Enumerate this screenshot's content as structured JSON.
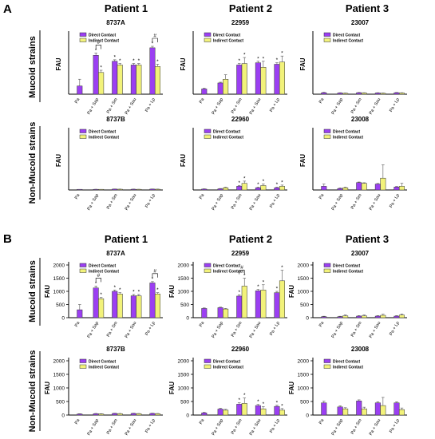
{
  "panels": [
    {
      "letter": "A"
    },
    {
      "letter": "B"
    }
  ],
  "patients": [
    "Patient 1",
    "Patient 2",
    "Patient 3"
  ],
  "row_labels": [
    "Mucoid strains",
    "Non-Mucoid strains"
  ],
  "legend": [
    "Direct Contact",
    "Indirect Contact"
  ],
  "colors": {
    "direct": "#9b3ff2",
    "indirect": "#f2f27a",
    "edge": "#333333"
  },
  "chart_data": [
    {
      "type": "bar",
      "panel": "A",
      "strain": "8737A",
      "ylabel": "FAU",
      "ylim": [
        0,
        4000
      ],
      "yticks": [],
      "categories": [
        "Pa",
        "Pa + Sap",
        "Pa + Sm",
        "Pa + Sau",
        "Pa + Lp"
      ],
      "legend": true,
      "series": [
        {
          "name": "Direct Contact",
          "values": [
            550,
            2600,
            2200,
            1950,
            3100
          ],
          "err": [
            450,
            150,
            100,
            100,
            100
          ],
          "stars": [
            false,
            true,
            true,
            true,
            true
          ]
        },
        {
          "name": "Indirect Contact",
          "values": [
            null,
            1450,
            1950,
            1950,
            1850
          ],
          "err": [
            null,
            150,
            100,
            100,
            150
          ],
          "stars": [
            false,
            true,
            true,
            true,
            true
          ]
        }
      ],
      "brackets": [
        {
          "cat": 1,
          "label": "#"
        },
        {
          "cat": 4,
          "label": "#"
        }
      ]
    },
    {
      "type": "bar",
      "panel": "A",
      "strain": "22959",
      "ylabel": "FAU",
      "ylim": [
        0,
        4000
      ],
      "yticks": [],
      "categories": [
        "Pa",
        "Pa + Sap",
        "Pa + Sm",
        "Pa + Sau",
        "Pa + Lp"
      ],
      "legend": true,
      "series": [
        {
          "name": "Direct Contact",
          "values": [
            350,
            750,
            1950,
            2100,
            2000
          ],
          "err": [
            50,
            50,
            100,
            100,
            100
          ],
          "stars": [
            false,
            false,
            true,
            true,
            true
          ]
        },
        {
          "name": "Indirect Contact",
          "values": [
            null,
            1000,
            2050,
            1800,
            2150
          ],
          "err": [
            null,
            300,
            400,
            400,
            400
          ],
          "stars": [
            false,
            false,
            true,
            true,
            true
          ]
        }
      ],
      "brackets": []
    },
    {
      "type": "bar",
      "panel": "A",
      "strain": "23007",
      "ylabel": "FAU",
      "ylim": [
        0,
        4000
      ],
      "yticks": [],
      "categories": [
        "Pa",
        "Pa + Sap",
        "Pa + Sm",
        "Pa + Sau",
        "Pa + Lp"
      ],
      "legend": true,
      "series": [
        {
          "name": "Direct Contact",
          "values": [
            100,
            80,
            100,
            80,
            100
          ],
          "err": [
            30,
            20,
            20,
            20,
            20
          ],
          "stars": [
            false,
            false,
            false,
            false,
            false
          ]
        },
        {
          "name": "Indirect Contact",
          "values": [
            null,
            60,
            80,
            60,
            80
          ],
          "err": [
            null,
            20,
            20,
            20,
            20
          ],
          "stars": [
            false,
            false,
            false,
            false,
            false
          ]
        }
      ],
      "brackets": []
    },
    {
      "type": "bar",
      "panel": "A",
      "strain": "8737B",
      "ylabel": "FAU",
      "ylim": [
        0,
        4000
      ],
      "yticks": [],
      "categories": [
        "Pa",
        "Pa + Sap",
        "Pa + Sm",
        "Pa + Sau",
        "Pa + Lp"
      ],
      "legend": true,
      "series": [
        {
          "name": "Direct Contact",
          "values": [
            30,
            40,
            60,
            50,
            60
          ],
          "err": [
            10,
            10,
            10,
            10,
            10
          ],
          "stars": [
            false,
            false,
            false,
            false,
            false
          ]
        },
        {
          "name": "Indirect Contact",
          "values": [
            null,
            30,
            50,
            40,
            50
          ],
          "err": [
            null,
            10,
            10,
            10,
            10
          ],
          "stars": [
            false,
            false,
            false,
            false,
            false
          ]
        }
      ],
      "brackets": []
    },
    {
      "type": "bar",
      "panel": "A",
      "strain": "22960",
      "ylabel": "FAU",
      "ylim": [
        0,
        4000
      ],
      "yticks": [],
      "categories": [
        "Pa",
        "Pa + Sap",
        "Pa + Sm",
        "Pa + Sau",
        "Pa + Lp"
      ],
      "legend": true,
      "series": [
        {
          "name": "Direct Contact",
          "values": [
            60,
            80,
            250,
            150,
            150
          ],
          "err": [
            20,
            20,
            60,
            40,
            40
          ],
          "stars": [
            false,
            false,
            true,
            true,
            true
          ]
        },
        {
          "name": "Indirect Contact",
          "values": [
            null,
            150,
            450,
            300,
            250
          ],
          "err": [
            null,
            40,
            150,
            100,
            80
          ],
          "stars": [
            false,
            false,
            true,
            true,
            true
          ]
        }
      ],
      "brackets": []
    },
    {
      "type": "bar",
      "panel": "A",
      "strain": "23008",
      "ylabel": "FAU",
      "ylim": [
        0,
        4000
      ],
      "yticks": [],
      "categories": [
        "Pa",
        "Pa + Sap",
        "Pa + Sm",
        "Pa + Sau",
        "Pa + Lp"
      ],
      "legend": true,
      "series": [
        {
          "name": "Direct Contact",
          "values": [
            250,
            100,
            500,
            400,
            200
          ],
          "err": [
            150,
            40,
            40,
            40,
            40
          ],
          "stars": [
            false,
            false,
            false,
            false,
            false
          ]
        },
        {
          "name": "Indirect Contact",
          "values": [
            null,
            150,
            450,
            800,
            250
          ],
          "err": [
            null,
            40,
            40,
            900,
            200
          ],
          "stars": [
            false,
            false,
            false,
            false,
            false
          ]
        }
      ],
      "brackets": []
    },
    {
      "type": "bar",
      "panel": "B",
      "strain": "8737A",
      "ylabel": "FAU",
      "ylim": [
        0,
        2000
      ],
      "yticks": [
        0,
        500,
        1000,
        1500,
        2000
      ],
      "categories": [
        "Pa",
        "Pa + Sap",
        "Pa + Sm",
        "Pa + Sau",
        "Pa + Lp"
      ],
      "legend": true,
      "series": [
        {
          "name": "Direct Contact",
          "values": [
            300,
            1130,
            1000,
            830,
            1320
          ],
          "err": [
            200,
            70,
            50,
            50,
            50
          ],
          "stars": [
            false,
            true,
            true,
            true,
            true
          ]
        },
        {
          "name": "Indirect Contact",
          "values": [
            null,
            720,
            900,
            830,
            900
          ],
          "err": [
            null,
            50,
            50,
            50,
            50
          ],
          "stars": [
            false,
            true,
            true,
            true,
            true
          ]
        }
      ],
      "brackets": [
        {
          "cat": 1,
          "label": "#"
        },
        {
          "cat": 4,
          "label": "#"
        }
      ]
    },
    {
      "type": "bar",
      "panel": "B",
      "strain": "22959",
      "ylabel": "FAU",
      "ylim": [
        0,
        2000
      ],
      "yticks": [
        0,
        500,
        1000,
        1500,
        2000
      ],
      "categories": [
        "Pa",
        "Pa + Sap",
        "Pa + Sm",
        "Pa + Sau",
        "Pa + Lp"
      ],
      "legend": true,
      "series": [
        {
          "name": "Direct Contact",
          "values": [
            350,
            380,
            820,
            1020,
            950
          ],
          "err": [
            20,
            20,
            50,
            50,
            50
          ],
          "stars": [
            false,
            false,
            true,
            true,
            true
          ]
        },
        {
          "name": "Indirect Contact",
          "values": [
            null,
            330,
            1200,
            1050,
            1400
          ],
          "err": [
            null,
            20,
            300,
            200,
            400
          ],
          "stars": [
            false,
            false,
            true,
            true,
            true
          ]
        }
      ],
      "brackets": [
        {
          "cat": 2,
          "label": "#"
        }
      ]
    },
    {
      "type": "bar",
      "panel": "B",
      "strain": "23007",
      "ylabel": "FAU",
      "ylim": [
        0,
        2000
      ],
      "yticks": [
        0,
        500,
        1000,
        1500,
        2000
      ],
      "categories": [
        "Pa",
        "Pa + Sap",
        "Pa + Sm",
        "Pa + Sau",
        "Pa + Lp"
      ],
      "legend": true,
      "series": [
        {
          "name": "Direct Contact",
          "values": [
            40,
            40,
            60,
            60,
            60
          ],
          "err": [
            15,
            15,
            20,
            20,
            20
          ],
          "stars": [
            false,
            false,
            false,
            false,
            false
          ]
        },
        {
          "name": "Indirect Contact",
          "values": [
            null,
            70,
            70,
            90,
            100
          ],
          "err": [
            null,
            30,
            30,
            40,
            40
          ],
          "stars": [
            false,
            false,
            false,
            false,
            false
          ]
        }
      ],
      "brackets": []
    },
    {
      "type": "bar",
      "panel": "B",
      "strain": "8737B",
      "ylabel": "FAU",
      "ylim": [
        0,
        2000
      ],
      "yticks": [
        0,
        500,
        1000,
        1500,
        2000
      ],
      "categories": [
        "Pa",
        "Pa + Sap",
        "Pa + Sm",
        "Pa + Sau",
        "Pa + Lp"
      ],
      "legend": true,
      "series": [
        {
          "name": "Direct Contact",
          "values": [
            40,
            50,
            60,
            60,
            60
          ],
          "err": [
            10,
            10,
            10,
            10,
            10
          ],
          "stars": [
            false,
            false,
            false,
            false,
            false
          ]
        },
        {
          "name": "Indirect Contact",
          "values": [
            null,
            40,
            50,
            50,
            50
          ],
          "err": [
            null,
            10,
            10,
            10,
            10
          ],
          "stars": [
            false,
            false,
            false,
            false,
            false
          ]
        }
      ],
      "brackets": []
    },
    {
      "type": "bar",
      "panel": "B",
      "strain": "22960",
      "ylabel": "FAU",
      "ylim": [
        0,
        2000
      ],
      "yticks": [
        0,
        500,
        1000,
        1500,
        2000
      ],
      "categories": [
        "Pa",
        "Pa + Sap",
        "Pa + Sm",
        "Pa + Sau",
        "Pa + Lp"
      ],
      "legend": true,
      "series": [
        {
          "name": "Direct Contact",
          "values": [
            80,
            220,
            400,
            350,
            320
          ],
          "err": [
            20,
            30,
            50,
            40,
            40
          ],
          "stars": [
            false,
            false,
            true,
            true,
            true
          ]
        },
        {
          "name": "Indirect Contact",
          "values": [
            null,
            180,
            430,
            230,
            180
          ],
          "err": [
            null,
            30,
            200,
            80,
            60
          ],
          "stars": [
            false,
            false,
            true,
            true,
            true
          ]
        }
      ],
      "brackets": []
    },
    {
      "type": "bar",
      "panel": "B",
      "strain": "23008",
      "ylabel": "FAU",
      "ylim": [
        0,
        2000
      ],
      "yticks": [
        0,
        500,
        1000,
        1500,
        2000
      ],
      "categories": [
        "Pa",
        "Pa + Sap",
        "Pa + Sm",
        "Pa + Sau",
        "Pa + Lp"
      ],
      "legend": true,
      "series": [
        {
          "name": "Direct Contact",
          "values": [
            450,
            300,
            520,
            450,
            450
          ],
          "err": [
            60,
            40,
            40,
            40,
            40
          ],
          "stars": [
            false,
            false,
            false,
            false,
            false
          ]
        },
        {
          "name": "Indirect Contact",
          "values": [
            null,
            230,
            230,
            350,
            200
          ],
          "err": [
            null,
            40,
            60,
            300,
            60
          ],
          "stars": [
            false,
            false,
            false,
            false,
            false
          ]
        }
      ],
      "brackets": []
    }
  ]
}
